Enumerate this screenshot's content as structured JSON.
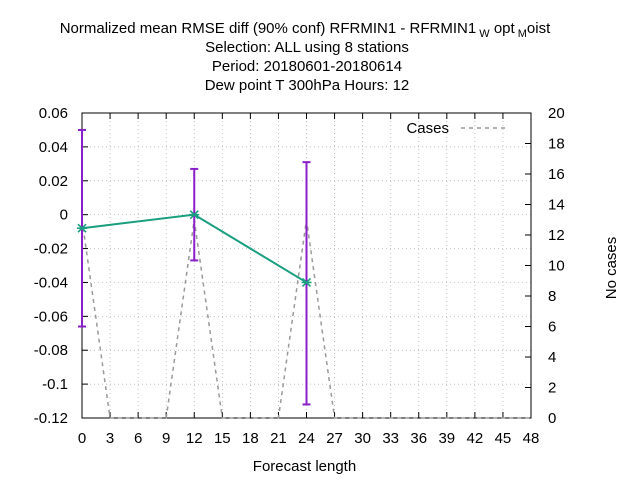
{
  "chart_data": {
    "type": "line",
    "title_lines": [
      {
        "text": "Normalized mean RMSE diff (90% conf) RFRMIN1 - RFRMIN1",
        "sub1": "W",
        "mid": "opt",
        "sub2": "M",
        "tail": "oist"
      },
      {
        "text": "Selection: ALL using     8 stations"
      },
      {
        "text": "Period: 20180601-20180614"
      },
      {
        "text": "Dew point T 300hPa   Hours:  12"
      }
    ],
    "xlabel": "Forecast length",
    "ylabel_right": "No cases",
    "xlim": [
      0,
      48
    ],
    "ylim": [
      -0.12,
      0.06
    ],
    "y2lim": [
      0,
      20
    ],
    "x_ticks": [
      0,
      3,
      6,
      9,
      12,
      15,
      18,
      21,
      24,
      27,
      30,
      33,
      36,
      39,
      42,
      45,
      48
    ],
    "y_ticks": [
      0.06,
      0.04,
      0.02,
      0,
      -0.02,
      -0.04,
      -0.06,
      -0.08,
      -0.1,
      -0.12
    ],
    "y_tick_labels": [
      "0.06",
      "0.04",
      "0.02",
      "0",
      "-0.02",
      "-0.04",
      "-0.06",
      "-0.08",
      "-0.1",
      "-0.12"
    ],
    "y2_ticks": [
      20,
      18,
      16,
      14,
      12,
      10,
      8,
      6,
      4,
      2,
      0
    ],
    "grid": true,
    "legend": {
      "position": "top-right",
      "entries": [
        "Cases"
      ]
    },
    "series": [
      {
        "kind": "line",
        "color": "#1a9e80",
        "x": [
          0,
          12,
          24
        ],
        "y": [
          -0.008,
          0.0,
          -0.04
        ],
        "err_low": [
          -0.066,
          -0.027,
          -0.112
        ],
        "err_high": [
          0.05,
          0.027,
          0.031
        ]
      },
      {
        "name": "Cases",
        "kind": "dashed",
        "axis": "y2",
        "color": "#999999",
        "x": [
          0,
          3,
          9,
          12,
          15,
          21,
          24,
          27,
          48
        ],
        "y": [
          13,
          0,
          0,
          13,
          0,
          0,
          13,
          0,
          0
        ]
      }
    ],
    "errorbar_color": "#8a1ec8"
  }
}
